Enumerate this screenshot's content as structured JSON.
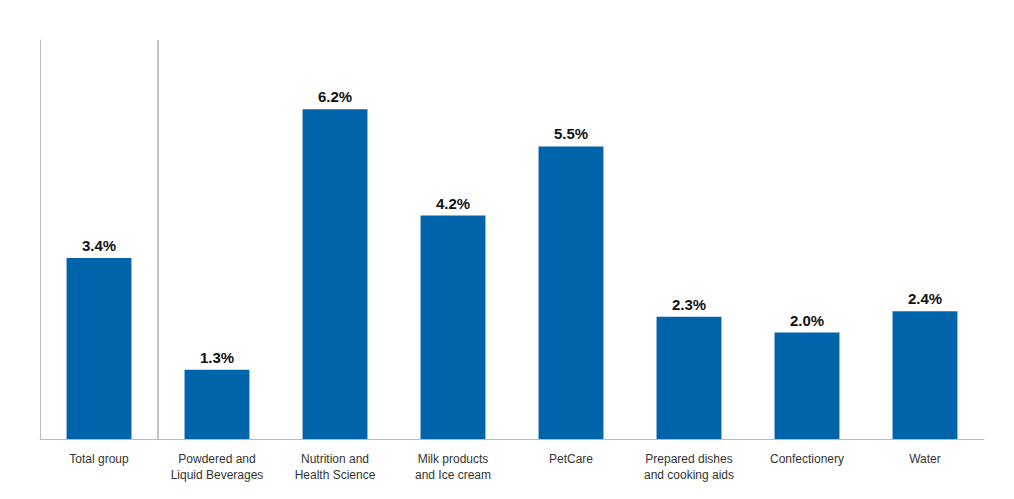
{
  "chart_data": {
    "type": "bar",
    "categories": [
      "Total group",
      "Powdered and\nLiquid Beverages",
      "Nutrition and\nHealth Science",
      "Milk products\nand Ice cream",
      "PetCare",
      "Prepared dishes\nand cooking aids",
      "Confectionery",
      "Water"
    ],
    "values": [
      3.4,
      1.3,
      6.2,
      4.2,
      5.5,
      2.3,
      2.0,
      2.4
    ],
    "value_labels": [
      "3.4%",
      "1.3%",
      "6.2%",
      "4.2%",
      "5.5%",
      "2.3%",
      "2.0%",
      "2.4%"
    ],
    "data_labels": true,
    "color": "#0064aa",
    "ylim": [
      0,
      7.5
    ],
    "tick_labels": "x",
    "grid": false
  }
}
